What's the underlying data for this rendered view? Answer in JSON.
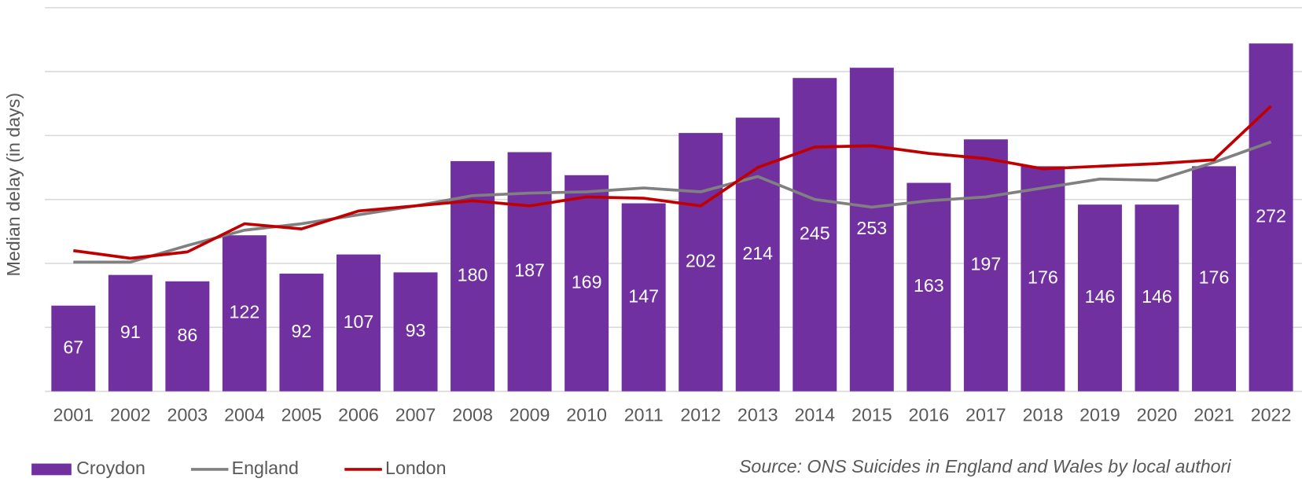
{
  "chart_data": {
    "type": "bar",
    "y_label": "Median delay (in days)",
    "categories": [
      "2001",
      "2002",
      "2003",
      "2004",
      "2005",
      "2006",
      "2007",
      "2008",
      "2009",
      "2010",
      "2011",
      "2012",
      "2013",
      "2014",
      "2015",
      "2016",
      "2017",
      "2018",
      "2019",
      "2020",
      "2021",
      "2022"
    ],
    "series": [
      {
        "name": "Croydon",
        "color": "#7030a0",
        "kind": "bar",
        "values": [
          67,
          91,
          86,
          122,
          92,
          107,
          93,
          180,
          187,
          169,
          147,
          202,
          214,
          245,
          253,
          163,
          197,
          176,
          146,
          146,
          176,
          272
        ]
      },
      {
        "name": "England",
        "color": "#808080",
        "kind": "line",
        "values": [
          101,
          101,
          114,
          126,
          131,
          138,
          145,
          153,
          155,
          156,
          159,
          156,
          168,
          150,
          144,
          149,
          152,
          159,
          166,
          165,
          179,
          195
        ]
      },
      {
        "name": "London",
        "color": "#c00000",
        "kind": "line",
        "values": [
          110,
          104,
          109,
          131,
          127,
          141,
          145,
          149,
          145,
          152,
          151,
          145,
          175,
          191,
          192,
          186,
          182,
          174,
          176,
          178,
          181,
          223
        ]
      }
    ],
    "ylim": [
      0,
      300
    ],
    "yticks": [
      0,
      50,
      100,
      150,
      200,
      250,
      300
    ],
    "grid": true,
    "source": "Source: ONS Suicides in England and Wales by local authori"
  }
}
